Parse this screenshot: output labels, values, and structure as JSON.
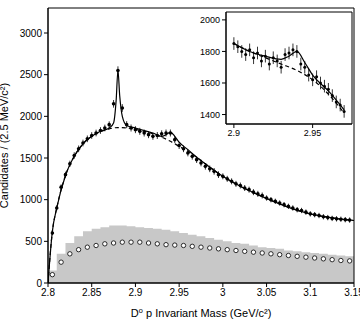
{
  "chart_data": [
    {
      "type": "scatter",
      "x_label": "D⁰ p Invariant Mass (GeV/c²)",
      "y_label": "Candidates / (2.5 MeV/c²)",
      "xlim": [
        2.8,
        3.15
      ],
      "xticks": [
        2.8,
        2.85,
        2.9,
        2.95,
        3,
        3.05,
        3.1,
        3.15
      ],
      "ylim": [
        0,
        3300
      ],
      "yticks": [
        0,
        500,
        1000,
        1500,
        2000,
        2500,
        3000
      ],
      "series": [
        {
          "type": "histogram",
          "color": "#c8c8c8",
          "bins": [
            2.8,
            2.81,
            2.82,
            2.83,
            2.84,
            2.85,
            2.86,
            2.87,
            2.88,
            2.89,
            2.9,
            2.91,
            2.92,
            2.93,
            2.94,
            2.95,
            2.96,
            2.97,
            2.98,
            2.99,
            3,
            3.01,
            3.02,
            3.03,
            3.04,
            3.05,
            3.06,
            3.07,
            3.08,
            3.09,
            3.1,
            3.11,
            3.12,
            3.13,
            3.14,
            3.15
          ],
          "values": [
            150,
            350,
            480,
            560,
            620,
            650,
            670,
            690,
            690,
            680,
            670,
            660,
            650,
            640,
            620,
            600,
            580,
            560,
            540,
            520,
            500,
            480,
            470,
            450,
            430,
            420,
            410,
            390,
            380,
            370,
            360,
            350,
            340,
            330,
            320
          ]
        },
        {
          "type": "scatter",
          "marker": "open_circle",
          "color": "#000000",
          "x": [
            2.805,
            2.815,
            2.825,
            2.835,
            2.845,
            2.855,
            2.865,
            2.875,
            2.885,
            2.895,
            2.905,
            2.915,
            2.925,
            2.935,
            2.945,
            2.955,
            2.965,
            2.975,
            2.985,
            2.995,
            3.005,
            3.015,
            3.025,
            3.035,
            3.045,
            3.055,
            3.065,
            3.075,
            3.085,
            3.095,
            3.105,
            3.115,
            3.125,
            3.135,
            3.145
          ],
          "values": [
            100,
            250,
            350,
            400,
            430,
            450,
            470,
            480,
            490,
            490,
            490,
            480,
            470,
            460,
            455,
            450,
            440,
            430,
            420,
            410,
            400,
            390,
            380,
            370,
            360,
            350,
            340,
            330,
            320,
            310,
            300,
            290,
            280,
            270,
            265
          ]
        },
        {
          "type": "line",
          "line_style": "dashed",
          "color": "#000000",
          "x": [
            2.8,
            2.805,
            2.81,
            2.82,
            2.83,
            2.84,
            2.85,
            2.86,
            2.87,
            2.88,
            2.89,
            2.9,
            2.91,
            2.92,
            2.93,
            2.94,
            2.95,
            2.96,
            2.97,
            2.98,
            3,
            3.02,
            3.04,
            3.06,
            3.08,
            3.1,
            3.12,
            3.14,
            3.15
          ],
          "values": [
            0,
            620,
            900,
            1290,
            1520,
            1670,
            1760,
            1815,
            1850,
            1865,
            1860,
            1845,
            1820,
            1790,
            1750,
            1700,
            1640,
            1580,
            1510,
            1430,
            1280,
            1160,
            1060,
            970,
            890,
            830,
            790,
            760,
            750
          ]
        },
        {
          "type": "line",
          "line_style": "solid",
          "color": "#000000",
          "x": [
            2.8,
            2.805,
            2.81,
            2.82,
            2.83,
            2.84,
            2.85,
            2.86,
            2.87,
            2.875,
            2.878,
            2.88,
            2.882,
            2.885,
            2.89,
            2.9,
            2.91,
            2.92,
            2.93,
            2.935,
            2.94,
            2.945,
            2.95,
            2.96,
            2.97,
            2.98,
            3,
            3.02,
            3.04,
            3.06,
            3.08,
            3.1,
            3.12,
            3.14,
            3.15
          ],
          "values": [
            0,
            620,
            900,
            1290,
            1520,
            1670,
            1760,
            1820,
            1860,
            1920,
            2200,
            2550,
            2250,
            2000,
            1890,
            1860,
            1830,
            1800,
            1760,
            1780,
            1810,
            1760,
            1690,
            1600,
            1510,
            1430,
            1280,
            1160,
            1060,
            970,
            890,
            830,
            790,
            760,
            750
          ]
        },
        {
          "type": "scatter",
          "marker": "circle",
          "color": "#000000",
          "x": [
            2.805,
            2.81,
            2.815,
            2.82,
            2.825,
            2.83,
            2.835,
            2.84,
            2.845,
            2.85,
            2.855,
            2.86,
            2.865,
            2.87,
            2.875,
            2.88,
            2.885,
            2.89,
            2.895,
            2.9,
            2.905,
            2.91,
            2.915,
            2.92,
            2.925,
            2.93,
            2.935,
            2.94,
            2.945,
            2.95,
            2.955,
            2.96,
            2.965,
            2.97,
            2.975,
            2.98,
            2.985,
            2.99,
            2.995,
            3,
            3.005,
            3.01,
            3.015,
            3.02,
            3.025,
            3.03,
            3.035,
            3.04,
            3.045,
            3.05,
            3.055,
            3.06,
            3.065,
            3.07,
            3.075,
            3.08,
            3.085,
            3.09,
            3.095,
            3.1,
            3.105,
            3.11,
            3.115,
            3.12,
            3.125,
            3.13,
            3.135,
            3.14,
            3.145
          ],
          "values": [
            600,
            900,
            1150,
            1300,
            1430,
            1530,
            1610,
            1680,
            1730,
            1770,
            1800,
            1830,
            1860,
            1900,
            2150,
            2550,
            2100,
            1900,
            1860,
            1840,
            1820,
            1800,
            1780,
            1760,
            1770,
            1790,
            1800,
            1800,
            1720,
            1650,
            1610,
            1560,
            1520,
            1480,
            1440,
            1400,
            1370,
            1340,
            1300,
            1280,
            1250,
            1220,
            1190,
            1170,
            1140,
            1120,
            1090,
            1070,
            1050,
            1020,
            1000,
            980,
            960,
            940,
            920,
            900,
            880,
            870,
            850,
            830,
            820,
            810,
            795,
            785,
            775,
            770,
            765,
            760,
            755
          ],
          "errors": [
            25,
            30,
            34,
            36,
            38,
            39,
            40,
            40,
            40,
            40,
            40,
            40,
            40,
            40,
            46,
            50,
            46,
            42,
            42,
            42,
            42,
            42,
            42,
            42,
            42,
            42,
            42,
            42,
            42,
            42,
            40,
            40,
            40,
            40,
            40,
            40,
            40,
            40,
            40,
            36,
            36,
            36,
            36,
            36,
            36,
            36,
            36,
            36,
            36,
            32,
            32,
            32,
            32,
            32,
            32,
            32,
            32,
            32,
            32,
            32,
            32,
            32,
            32,
            32,
            32,
            32,
            32,
            32,
            32
          ]
        }
      ]
    },
    {
      "type": "scatter",
      "xlim": [
        2.895,
        2.975
      ],
      "xticks": [
        2.9,
        2.95
      ],
      "ylim": [
        1340,
        2050
      ],
      "yticks": [
        1400,
        1600,
        1800,
        2000
      ],
      "series": [
        {
          "type": "line",
          "line_style": "dashed",
          "color": "#000000",
          "x": [
            2.9,
            2.91,
            2.92,
            2.93,
            2.94,
            2.95,
            2.96,
            2.97
          ],
          "values": [
            1850,
            1800,
            1760,
            1720,
            1680,
            1620,
            1530,
            1410
          ]
        },
        {
          "type": "line",
          "line_style": "solid",
          "color": "#000000",
          "x": [
            2.9,
            2.91,
            2.92,
            2.93,
            2.935,
            2.94,
            2.945,
            2.95,
            2.96,
            2.97
          ],
          "values": [
            1850,
            1800,
            1770,
            1750,
            1770,
            1800,
            1730,
            1650,
            1550,
            1430
          ]
        },
        {
          "type": "scatter",
          "marker": "circle",
          "color": "#000000",
          "x": [
            2.9,
            2.9025,
            2.905,
            2.9075,
            2.91,
            2.9125,
            2.915,
            2.9175,
            2.92,
            2.9225,
            2.925,
            2.9275,
            2.93,
            2.9325,
            2.935,
            2.9375,
            2.94,
            2.9425,
            2.945,
            2.9475,
            2.95,
            2.9525,
            2.955,
            2.9575,
            2.96,
            2.9625,
            2.965,
            2.9675,
            2.97
          ],
          "values": [
            1850,
            1830,
            1800,
            1780,
            1810,
            1760,
            1790,
            1740,
            1770,
            1720,
            1760,
            1740,
            1700,
            1780,
            1790,
            1810,
            1800,
            1720,
            1700,
            1650,
            1620,
            1640,
            1600,
            1580,
            1560,
            1520,
            1480,
            1460,
            1420
          ],
          "errors": [
            40,
            40,
            40,
            40,
            40,
            40,
            40,
            40,
            40,
            40,
            40,
            40,
            40,
            40,
            40,
            40,
            40,
            40,
            40,
            40,
            40,
            40,
            40,
            40,
            40,
            40,
            40,
            40,
            40
          ]
        }
      ]
    }
  ]
}
